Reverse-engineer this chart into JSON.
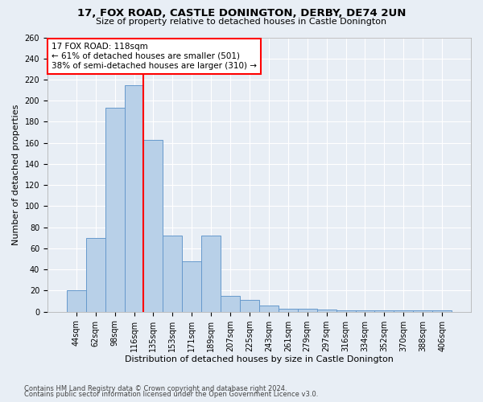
{
  "title1": "17, FOX ROAD, CASTLE DONINGTON, DERBY, DE74 2UN",
  "title2": "Size of property relative to detached houses in Castle Donington",
  "xlabel": "Distribution of detached houses by size in Castle Donington",
  "ylabel": "Number of detached properties",
  "categories": [
    "44sqm",
    "62sqm",
    "98sqm",
    "116sqm",
    "135sqm",
    "153sqm",
    "171sqm",
    "189sqm",
    "207sqm",
    "225sqm",
    "243sqm",
    "261sqm",
    "279sqm",
    "297sqm",
    "316sqm",
    "334sqm",
    "352sqm",
    "370sqm",
    "388sqm",
    "406sqm"
  ],
  "values": [
    20,
    70,
    193,
    215,
    163,
    72,
    48,
    72,
    15,
    11,
    6,
    3,
    3,
    2,
    1,
    1,
    1,
    1,
    1,
    1
  ],
  "bar_color": "#b8d0e8",
  "bar_edge_color": "#6699cc",
  "bg_color": "#e8eef5",
  "grid_color": "#ffffff",
  "vline_x": 3.5,
  "vline_color": "red",
  "annotation_text": "17 FOX ROAD: 118sqm\n← 61% of detached houses are smaller (501)\n38% of semi-detached houses are larger (310) →",
  "annotation_box_color": "white",
  "annotation_box_edge": "red",
  "footer1": "Contains HM Land Registry data © Crown copyright and database right 2024.",
  "footer2": "Contains public sector information licensed under the Open Government Licence v3.0.",
  "ylim": [
    0,
    260
  ],
  "yticks": [
    0,
    20,
    40,
    60,
    80,
    100,
    120,
    140,
    160,
    180,
    200,
    220,
    240,
    260
  ]
}
